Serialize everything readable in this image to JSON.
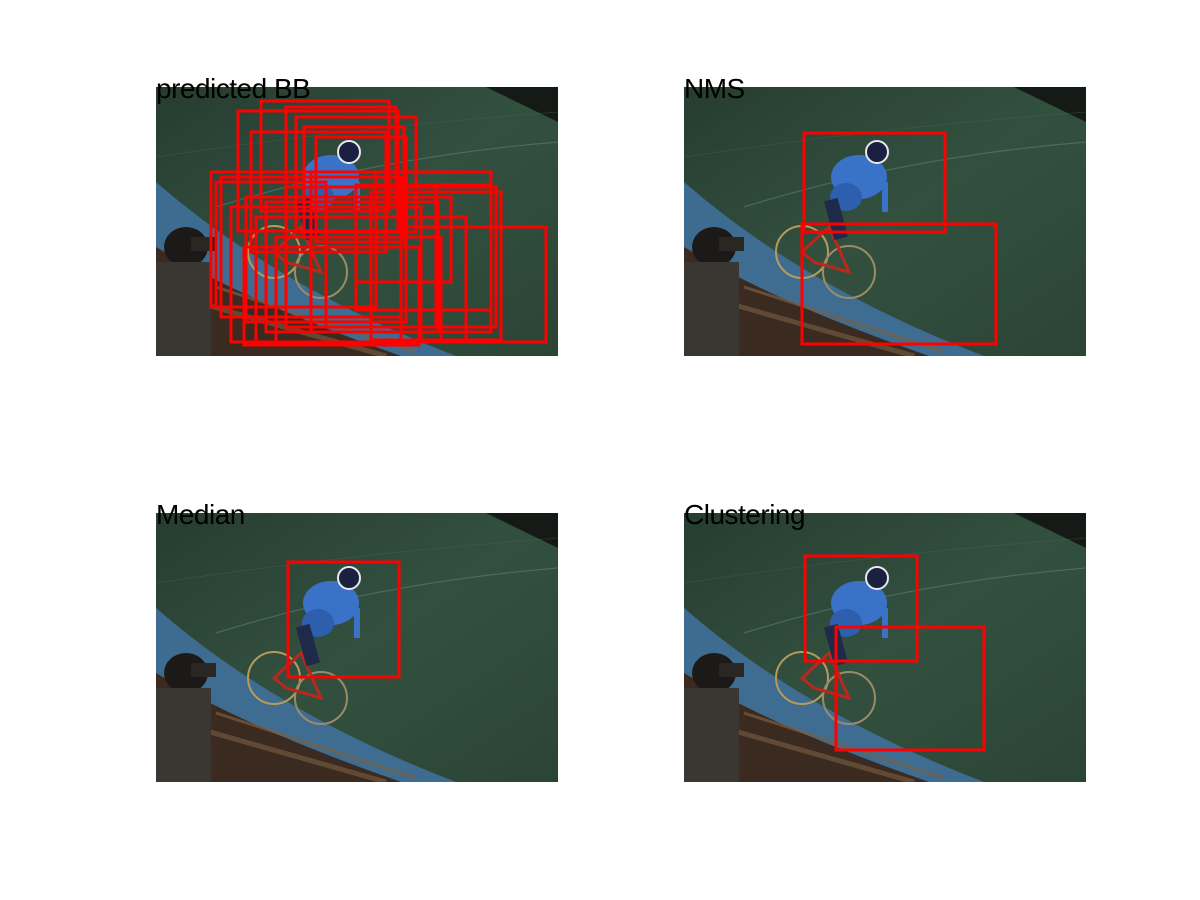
{
  "panels": [
    {
      "title": "predicted BB"
    },
    {
      "title": "NMS"
    },
    {
      "title": "Median"
    },
    {
      "title": "Clustering"
    }
  ],
  "colors": {
    "box": "#ff0000",
    "track": "#2e4a3b",
    "banking": "#3f6f96",
    "jersey": "#3a72c8"
  }
}
